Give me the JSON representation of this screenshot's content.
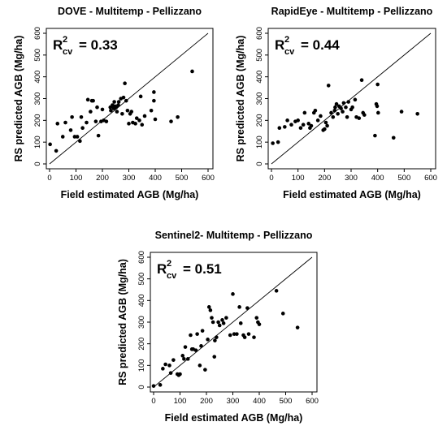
{
  "chart_data": [
    {
      "type": "scatter",
      "title": "DOVE - Multitemp - Pellizzano",
      "xlabel": "Field estimated AGB (Mg/ha)",
      "ylabel": "RS predicted AGB (Mg/ha)",
      "xlim": [
        0,
        600
      ],
      "ylim": [
        0,
        600
      ],
      "xticks": [
        "0",
        "100",
        "200",
        "300",
        "400",
        "500",
        "600"
      ],
      "yticks": [
        "0",
        "100",
        "200",
        "300",
        "400",
        "500",
        "600"
      ],
      "annotation": {
        "symbol": "R",
        "sup": "2",
        "sub": "cv",
        "value": "= 0.33"
      },
      "reference_line": "1:1",
      "grid": false,
      "points": [
        [
          2,
          90
        ],
        [
          25,
          60
        ],
        [
          30,
          185
        ],
        [
          50,
          125
        ],
        [
          60,
          190
        ],
        [
          80,
          155
        ],
        [
          85,
          215
        ],
        [
          95,
          125
        ],
        [
          105,
          125
        ],
        [
          115,
          105
        ],
        [
          120,
          215
        ],
        [
          125,
          165
        ],
        [
          140,
          190
        ],
        [
          145,
          295
        ],
        [
          155,
          240
        ],
        [
          160,
          290
        ],
        [
          165,
          290
        ],
        [
          175,
          195
        ],
        [
          180,
          260
        ],
        [
          185,
          130
        ],
        [
          195,
          195
        ],
        [
          200,
          250
        ],
        [
          205,
          200
        ],
        [
          215,
          195
        ],
        [
          230,
          260
        ],
        [
          232,
          245
        ],
        [
          238,
          270
        ],
        [
          240,
          265
        ],
        [
          243,
          255
        ],
        [
          245,
          285
        ],
        [
          248,
          265
        ],
        [
          252,
          260
        ],
        [
          255,
          240
        ],
        [
          260,
          270
        ],
        [
          262,
          285
        ],
        [
          270,
          300
        ],
        [
          275,
          230
        ],
        [
          280,
          305
        ],
        [
          285,
          370
        ],
        [
          290,
          290
        ],
        [
          295,
          245
        ],
        [
          300,
          185
        ],
        [
          305,
          230
        ],
        [
          310,
          240
        ],
        [
          315,
          190
        ],
        [
          325,
          185
        ],
        [
          330,
          210
        ],
        [
          340,
          200
        ],
        [
          345,
          310
        ],
        [
          350,
          180
        ],
        [
          360,
          220
        ],
        [
          385,
          245
        ],
        [
          395,
          290
        ],
        [
          395,
          330
        ],
        [
          400,
          205
        ],
        [
          460,
          195
        ],
        [
          485,
          215
        ],
        [
          540,
          425
        ]
      ]
    },
    {
      "type": "scatter",
      "title": "RapidEye - Multitemp - Pellizzano",
      "xlabel": "Field estimated AGB (Mg/ha)",
      "ylabel": "RS predicted AGB (Mg/ha)",
      "xlim": [
        0,
        600
      ],
      "ylim": [
        0,
        600
      ],
      "xticks": [
        "0",
        "100",
        "200",
        "300",
        "400",
        "500",
        "600"
      ],
      "yticks": [
        "0",
        "100",
        "200",
        "300",
        "400",
        "500",
        "600"
      ],
      "annotation": {
        "symbol": "R",
        "sup": "2",
        "sub": "cv",
        "value": "= 0.44"
      },
      "reference_line": "1:1",
      "grid": false,
      "points": [
        [
          5,
          95
        ],
        [
          25,
          100
        ],
        [
          30,
          165
        ],
        [
          50,
          170
        ],
        [
          60,
          200
        ],
        [
          75,
          180
        ],
        [
          90,
          195
        ],
        [
          100,
          200
        ],
        [
          110,
          165
        ],
        [
          120,
          180
        ],
        [
          125,
          235
        ],
        [
          140,
          185
        ],
        [
          145,
          165
        ],
        [
          150,
          175
        ],
        [
          160,
          235
        ],
        [
          165,
          245
        ],
        [
          175,
          200
        ],
        [
          185,
          220
        ],
        [
          195,
          155
        ],
        [
          200,
          160
        ],
        [
          205,
          190
        ],
        [
          210,
          175
        ],
        [
          215,
          360
        ],
        [
          225,
          235
        ],
        [
          232,
          215
        ],
        [
          238,
          245
        ],
        [
          240,
          260
        ],
        [
          245,
          275
        ],
        [
          250,
          230
        ],
        [
          255,
          265
        ],
        [
          262,
          255
        ],
        [
          268,
          240
        ],
        [
          272,
          280
        ],
        [
          280,
          260
        ],
        [
          285,
          215
        ],
        [
          290,
          285
        ],
        [
          300,
          250
        ],
        [
          305,
          260
        ],
        [
          315,
          295
        ],
        [
          320,
          215
        ],
        [
          330,
          210
        ],
        [
          340,
          385
        ],
        [
          345,
          235
        ],
        [
          350,
          225
        ],
        [
          390,
          130
        ],
        [
          395,
          275
        ],
        [
          398,
          265
        ],
        [
          400,
          365
        ],
        [
          402,
          235
        ],
        [
          460,
          120
        ],
        [
          490,
          240
        ],
        [
          550,
          230
        ]
      ]
    },
    {
      "type": "scatter",
      "title": "Sentinel2- Multitemp - Pellizzano",
      "xlabel": "Field estimated AGB (Mg/ha)",
      "ylabel": "RS predicted AGB (Mg/ha)",
      "xlim": [
        0,
        600
      ],
      "ylim": [
        0,
        600
      ],
      "xticks": [
        "0",
        "100",
        "200",
        "300",
        "400",
        "500",
        "600"
      ],
      "yticks": [
        "0",
        "100",
        "200",
        "300",
        "400",
        "500",
        "600"
      ],
      "annotation": {
        "symbol": "R",
        "sup": "2",
        "sub": "cv",
        "value": "= 0.51"
      },
      "reference_line": "1:1",
      "grid": false,
      "points": [
        [
          0,
          5
        ],
        [
          25,
          10
        ],
        [
          35,
          85
        ],
        [
          45,
          105
        ],
        [
          60,
          100
        ],
        [
          65,
          65
        ],
        [
          75,
          125
        ],
        [
          90,
          60
        ],
        [
          95,
          55
        ],
        [
          100,
          60
        ],
        [
          110,
          145
        ],
        [
          115,
          130
        ],
        [
          120,
          185
        ],
        [
          130,
          130
        ],
        [
          140,
          240
        ],
        [
          145,
          175
        ],
        [
          150,
          175
        ],
        [
          160,
          170
        ],
        [
          165,
          245
        ],
        [
          175,
          100
        ],
        [
          180,
          190
        ],
        [
          185,
          260
        ],
        [
          195,
          80
        ],
        [
          205,
          220
        ],
        [
          210,
          370
        ],
        [
          215,
          355
        ],
        [
          220,
          320
        ],
        [
          225,
          300
        ],
        [
          230,
          140
        ],
        [
          232,
          215
        ],
        [
          238,
          230
        ],
        [
          245,
          300
        ],
        [
          250,
          285
        ],
        [
          260,
          310
        ],
        [
          265,
          295
        ],
        [
          275,
          320
        ],
        [
          290,
          240
        ],
        [
          300,
          430
        ],
        [
          305,
          245
        ],
        [
          315,
          245
        ],
        [
          325,
          370
        ],
        [
          330,
          295
        ],
        [
          340,
          240
        ],
        [
          345,
          230
        ],
        [
          355,
          365
        ],
        [
          360,
          245
        ],
        [
          380,
          230
        ],
        [
          390,
          320
        ],
        [
          395,
          300
        ],
        [
          400,
          290
        ],
        [
          465,
          445
        ],
        [
          490,
          340
        ],
        [
          545,
          275
        ]
      ]
    }
  ]
}
